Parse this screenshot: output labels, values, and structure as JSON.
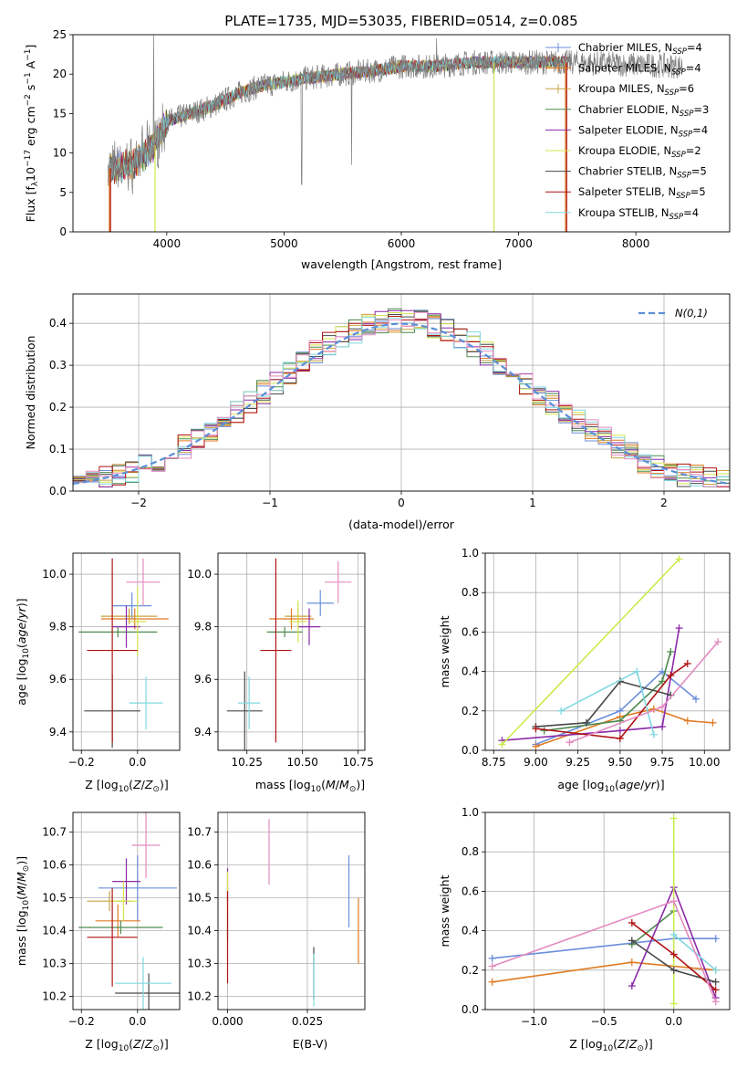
{
  "colors": {
    "s1": "#6a8fdc",
    "s2": "#e07b24",
    "s3": "#c8a040",
    "s4": "#4f8a4f",
    "s5": "#8b2aa8",
    "s6": "#d6e44a",
    "s7": "#484848",
    "s8": "#b01414",
    "s9": "#80d8e0",
    "s10": "#e38cc0",
    "grid": "#b0b0b0",
    "spectrum": "#7f7f7f",
    "normal_curve": "#5b8fd8",
    "yellowgreen": "#c8ec4a"
  },
  "chart_data": [
    {
      "id": "spectrum",
      "type": "line",
      "title": "PLATE=1735, MJD=53035, FIBERID=0514, z=0.085",
      "xlabel": "wavelength [Angstrom, rest frame]",
      "ylabel": "Flux [fλ10⁻¹⁷ erg cm⁻² s⁻¹ A⁻¹]",
      "xlim": [
        3200,
        8800
      ],
      "ylim": [
        0,
        25
      ],
      "xticks": [
        4000,
        5000,
        6000,
        7000,
        8000
      ],
      "yticks": [
        0,
        5,
        10,
        15,
        20,
        25
      ],
      "continuum": {
        "x": [
          3500,
          3700,
          3900,
          4000,
          4200,
          4400,
          4600,
          4800,
          5000,
          5200,
          5500,
          5800,
          6000,
          6300,
          6600,
          6900,
          7200,
          7400
        ],
        "y": [
          8,
          8.5,
          11,
          14,
          15,
          16,
          17.5,
          18.5,
          19,
          19.5,
          20,
          20.5,
          21,
          21,
          21.5,
          21.5,
          21.5,
          21.5
        ]
      },
      "legend": [
        "Chabrier MILES, N_SSP=4",
        "Salpeter MILES, N_SSP=4",
        "Kroupa MILES, N_SSP=6",
        "Chabrier ELODIE, N_SSP=3",
        "Salpeter ELODIE, N_SSP=4",
        "Kroupa ELODIE, N_SSP=2",
        "Chabrier STELIB, N_SSP=5",
        "Salpeter STELIB, N_SSP=5",
        "Kroupa STELIB, N_SSP=4"
      ],
      "legend_display": [
        {
          "pre": "Chabrier MILES, N",
          "sub": "SSP",
          "post": "=4"
        },
        {
          "pre": "Salpeter MILES, N",
          "sub": "SSP",
          "post": "=4"
        },
        {
          "pre": "Kroupa MILES, N",
          "sub": "SSP",
          "post": "=6"
        },
        {
          "pre": "Chabrier ELODIE, N",
          "sub": "SSP",
          "post": "=3"
        },
        {
          "pre": "Salpeter ELODIE, N",
          "sub": "SSP",
          "post": "=4"
        },
        {
          "pre": "Kroupa ELODIE, N",
          "sub": "SSP",
          "post": "=2"
        },
        {
          "pre": "Chabrier STELIB, N",
          "sub": "SSP",
          "post": "=5"
        },
        {
          "pre": "Salpeter STELIB, N",
          "sub": "SSP",
          "post": "=5"
        },
        {
          "pre": "Kroupa STELIB, N",
          "sub": "SSP",
          "post": "=4"
        }
      ],
      "legend_placement": "top-right",
      "grid": false
    },
    {
      "id": "residuals",
      "type": "histogram",
      "xlabel": "(data-model)/error",
      "ylabel": "Normed distribution",
      "xlim": [
        -2.5,
        2.5
      ],
      "ylim": [
        0,
        0.47
      ],
      "xticks": [
        -2,
        -1,
        0,
        1,
        2
      ],
      "yticks": [
        0.0,
        0.1,
        0.2,
        0.3,
        0.4
      ],
      "bin_width": 0.1,
      "legend": [
        "N(0,1)"
      ],
      "legend_placement": "top-right",
      "grid": true
    },
    {
      "id": "age_vs_Z",
      "type": "errorbar",
      "xlabel": "Z [log10(Z/Z⊙)]",
      "ylabel": "age  [log10(age/yr)]",
      "xlim": [
        -0.23,
        0.15
      ],
      "ylim": [
        9.33,
        10.08
      ],
      "xticks": [
        -0.2,
        0.0
      ],
      "yticks": [
        9.4,
        9.6,
        9.8,
        10.0
      ],
      "grid": true,
      "points": [
        {
          "x": -0.02,
          "y": 9.88,
          "xerr": 0.07,
          "yerr": 0.05
        },
        {
          "x": -0.01,
          "y": 9.83,
          "xerr": 0.12,
          "yerr": 0.04
        },
        {
          "x": -0.03,
          "y": 9.84,
          "xerr": 0.1,
          "yerr": 0.03
        },
        {
          "x": -0.07,
          "y": 9.78,
          "xerr": 0.14,
          "yerr": 0.02
        },
        {
          "x": -0.04,
          "y": 9.8,
          "xerr": 0.05,
          "yerr": 0.08
        },
        {
          "x": 0.0,
          "y": 9.82,
          "xerr": 0.03,
          "yerr": 0.13
        },
        {
          "x": -0.09,
          "y": 9.48,
          "xerr": 0.1,
          "yerr": 0.14
        },
        {
          "x": -0.09,
          "y": 9.71,
          "xerr": 0.09,
          "yerr": 0.35
        },
        {
          "x": 0.03,
          "y": 9.51,
          "xerr": 0.06,
          "yerr": 0.1
        },
        {
          "x": 0.02,
          "y": 9.97,
          "xerr": 0.06,
          "yerr": 0.09
        }
      ]
    },
    {
      "id": "age_vs_mass",
      "type": "errorbar",
      "xlabel": "mass [log10(M/M⊙)]",
      "ylabel": "",
      "xlim": [
        10.12,
        10.78
      ],
      "ylim": [
        9.33,
        10.08
      ],
      "xticks": [
        10.25,
        10.5,
        10.75
      ],
      "yticks": [
        9.4,
        9.6,
        9.8,
        10.0
      ],
      "grid": true,
      "points": [
        {
          "x": 10.58,
          "y": 9.89,
          "xerr": 0.06,
          "yerr": 0.05
        },
        {
          "x": 10.45,
          "y": 9.83,
          "xerr": 0.1,
          "yerr": 0.04
        },
        {
          "x": 10.48,
          "y": 9.84,
          "xerr": 0.06,
          "yerr": 0.03
        },
        {
          "x": 10.42,
          "y": 9.78,
          "xerr": 0.08,
          "yerr": 0.02
        },
        {
          "x": 10.53,
          "y": 9.8,
          "xerr": 0.05,
          "yerr": 0.07
        },
        {
          "x": 10.48,
          "y": 9.82,
          "xerr": 0.04,
          "yerr": 0.08
        },
        {
          "x": 10.24,
          "y": 9.48,
          "xerr": 0.08,
          "yerr": 0.15
        },
        {
          "x": 10.38,
          "y": 9.71,
          "xerr": 0.07,
          "yerr": 0.35
        },
        {
          "x": 10.26,
          "y": 9.51,
          "xerr": 0.05,
          "yerr": 0.1
        },
        {
          "x": 10.66,
          "y": 9.97,
          "xerr": 0.06,
          "yerr": 0.08
        }
      ]
    },
    {
      "id": "weight_vs_age",
      "type": "line",
      "xlabel": "age  [log10(age/yr)]",
      "ylabel": "mass weight",
      "xlim": [
        8.7,
        10.15
      ],
      "ylim": [
        0,
        1
      ],
      "xticks": [
        8.75,
        9.0,
        9.25,
        9.5,
        9.75,
        10.0
      ],
      "yticks": [
        0.0,
        0.2,
        0.4,
        0.6,
        0.8,
        1.0
      ],
      "grid": true,
      "series": [
        {
          "x": [
            9.0,
            9.5,
            9.75,
            9.95
          ],
          "y": [
            0.03,
            0.2,
            0.4,
            0.26
          ]
        },
        {
          "x": [
            9.0,
            9.5,
            9.7,
            9.9,
            10.05
          ],
          "y": [
            0.02,
            0.17,
            0.21,
            0.15,
            0.14
          ]
        },
        {
          "x": [
            9.05,
            9.5,
            9.75,
            9.8
          ],
          "y": [
            0.1,
            0.15,
            0.35,
            0.5
          ]
        },
        {
          "x": [
            8.8,
            9.5,
            9.75,
            9.85
          ],
          "y": [
            0.05,
            0.1,
            0.12,
            0.62
          ]
        },
        {
          "x": [
            8.8,
            9.85
          ],
          "y": [
            0.03,
            0.97
          ]
        },
        {
          "x": [
            9.0,
            9.3,
            9.5,
            9.8
          ],
          "y": [
            0.12,
            0.14,
            0.35,
            0.28
          ]
        },
        {
          "x": [
            9.0,
            9.5,
            9.8,
            9.9
          ],
          "y": [
            0.11,
            0.06,
            0.38,
            0.44
          ]
        },
        {
          "x": [
            9.15,
            9.6,
            9.7
          ],
          "y": [
            0.2,
            0.4,
            0.08
          ]
        },
        {
          "x": [
            9.2,
            9.75,
            10.08
          ],
          "y": [
            0.04,
            0.22,
            0.55
          ]
        }
      ]
    },
    {
      "id": "mass_vs_Z",
      "type": "errorbar",
      "xlabel": "Z [log10(Z/Z⊙)]",
      "ylabel": "mass [log10(M/M⊙)]",
      "xlim": [
        -0.23,
        0.15
      ],
      "ylim": [
        10.16,
        10.76
      ],
      "xticks": [
        -0.2,
        0.0
      ],
      "yticks": [
        10.2,
        10.3,
        10.4,
        10.5,
        10.6,
        10.7
      ],
      "grid": true,
      "points": [
        {
          "x": 0.0,
          "y": 10.53,
          "xerr": 0.14,
          "yerr": 0.1
        },
        {
          "x": -0.07,
          "y": 10.43,
          "xerr": 0.08,
          "yerr": 0.05
        },
        {
          "x": -0.1,
          "y": 10.49,
          "xerr": 0.08,
          "yerr": 0.03
        },
        {
          "x": -0.06,
          "y": 10.41,
          "xerr": 0.15,
          "yerr": 0.02
        },
        {
          "x": -0.04,
          "y": 10.55,
          "xerr": 0.05,
          "yerr": 0.07
        },
        {
          "x": -0.05,
          "y": 10.49,
          "xerr": 0.05,
          "yerr": 0.06
        },
        {
          "x": 0.04,
          "y": 10.21,
          "xerr": 0.12,
          "yerr": 0.06
        },
        {
          "x": -0.09,
          "y": 10.38,
          "xerr": 0.09,
          "yerr": 0.15
        },
        {
          "x": 0.02,
          "y": 10.24,
          "xerr": 0.1,
          "yerr": 0.08
        },
        {
          "x": 0.03,
          "y": 10.66,
          "xerr": 0.05,
          "yerr": 0.1
        }
      ]
    },
    {
      "id": "mass_vs_ebv",
      "type": "errorbar",
      "xlabel": "E(B-V)",
      "ylabel": "",
      "xlim": [
        -0.003,
        0.043
      ],
      "ylim": [
        10.16,
        10.76
      ],
      "xticks": [
        0.0,
        0.025
      ],
      "xtick_labels": [
        "0.000",
        "0.025"
      ],
      "yticks": [
        10.2,
        10.3,
        10.4,
        10.5,
        10.6,
        10.7
      ],
      "grid": true,
      "points": [
        {
          "x": 0.038,
          "y": 10.52,
          "xerr": 0,
          "yerr": 0.11
        },
        {
          "x": 0.041,
          "y": 10.4,
          "xerr": 0,
          "yerr": 0.1
        },
        {
          "x": 0.0,
          "y": 10.49,
          "xerr": 0,
          "yerr": 0.04
        },
        {
          "x": 0.0,
          "y": 10.41,
          "xerr": 0,
          "yerr": 0.04
        },
        {
          "x": 0.0,
          "y": 10.54,
          "xerr": 0,
          "yerr": 0.05
        },
        {
          "x": 0.0,
          "y": 10.55,
          "xerr": 0,
          "yerr": 0.03
        },
        {
          "x": 0.027,
          "y": 10.27,
          "xerr": 0,
          "yerr": 0.08
        },
        {
          "x": 0.0,
          "y": 10.38,
          "xerr": 0,
          "yerr": 0.14
        },
        {
          "x": 0.027,
          "y": 10.25,
          "xerr": 0,
          "yerr": 0.08
        },
        {
          "x": 0.013,
          "y": 10.64,
          "xerr": 0,
          "yerr": 0.1
        }
      ]
    },
    {
      "id": "weight_vs_Z",
      "type": "line",
      "xlabel": "Z [log10(Z/Z⊙)]",
      "ylabel": "mass weight",
      "xlim": [
        -1.35,
        0.4
      ],
      "ylim": [
        0,
        1
      ],
      "xticks": [
        -1.0,
        -0.5,
        0.0
      ],
      "yticks": [
        0.0,
        0.2,
        0.4,
        0.6,
        0.8,
        1.0
      ],
      "grid": true,
      "series": [
        {
          "x": [
            -1.3,
            0.0,
            0.3
          ],
          "y": [
            0.26,
            0.36,
            0.36
          ]
        },
        {
          "x": [
            -1.3,
            -0.3,
            0.3
          ],
          "y": [
            0.14,
            0.24,
            0.2
          ]
        },
        {
          "x": [
            -0.3,
            0.0
          ],
          "y": [
            0.33,
            0.5
          ]
        },
        {
          "x": [
            -0.3,
            0.0,
            0.3
          ],
          "y": [
            0.12,
            0.62,
            0.06
          ]
        },
        {
          "x": [
            0.0,
            0.0
          ],
          "y": [
            0.03,
            0.97
          ]
        },
        {
          "x": [
            -0.3,
            0.0,
            0.3
          ],
          "y": [
            0.35,
            0.2,
            0.14
          ]
        },
        {
          "x": [
            -0.3,
            0.0,
            0.3
          ],
          "y": [
            0.44,
            0.28,
            0.1
          ]
        },
        {
          "x": [
            0.0,
            0.3
          ],
          "y": [
            0.38,
            0.2
          ]
        },
        {
          "x": [
            -1.3,
            0.0,
            0.3
          ],
          "y": [
            0.22,
            0.55,
            0.04
          ]
        }
      ]
    }
  ],
  "labels": {
    "title": "PLATE=1735, MJD=53035, FIBERID=0514, z=0.085",
    "p1_xlabel": "wavelength [Angstrom, rest frame]",
    "p2_xlabel": "(data-model)/error",
    "p2_ylabel": "Normed distribution",
    "p5_ylabel": "mass weight",
    "p8_ylabel": "mass weight",
    "p7_xlabel": "E(B-V)",
    "normal_legend": "N(0,1)"
  }
}
